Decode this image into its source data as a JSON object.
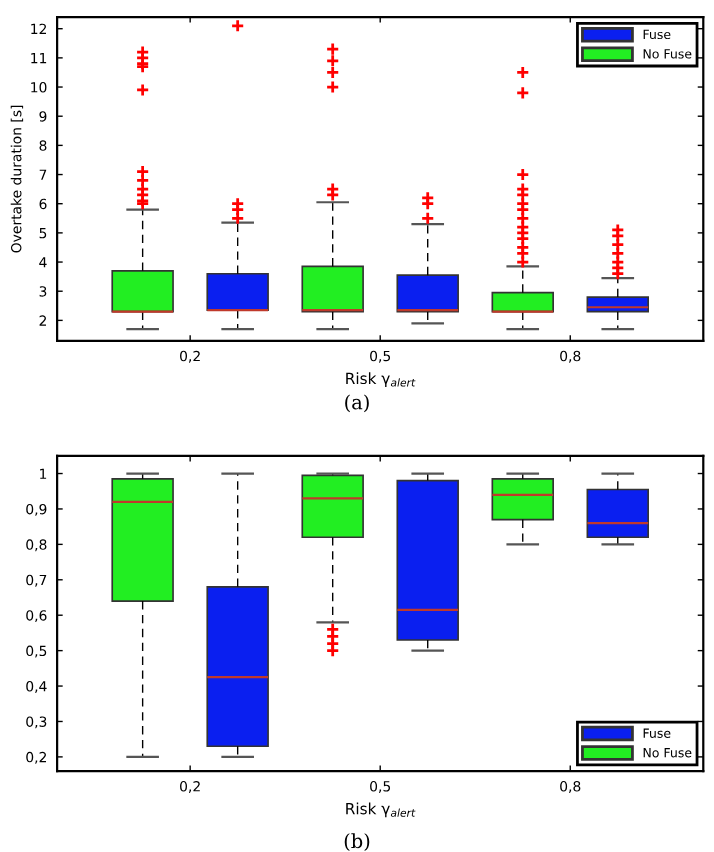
{
  "chart_data": [
    {
      "type": "box",
      "categories": [
        "0,2",
        "0,5",
        "0,8"
      ],
      "xlabel": "Risk γ$_{alert}$",
      "ylabel": "Overtake duration [s]",
      "ylim": [
        1.3,
        12.4
      ],
      "yticks": [
        2,
        3,
        4,
        5,
        6,
        7,
        8,
        9,
        10,
        11,
        12
      ],
      "legend": "top right",
      "grid": false,
      "marker": "cross",
      "annotations": [
        "(a)"
      ],
      "series": [
        {
          "name": "Fuse",
          "color": "#0a1ff0",
          "boxes": [
            {
              "low": 1.7,
              "q1": 2.35,
              "median": 2.35,
              "q3": 3.6,
              "high": 5.35,
              "outliers": [
                5.5,
                5.8,
                6.0,
                12.1
              ]
            },
            {
              "low": 1.9,
              "q1": 2.3,
              "median": 2.35,
              "q3": 3.55,
              "high": 5.3,
              "outliers": [
                5.5,
                6.0,
                6.2
              ]
            },
            {
              "low": 1.7,
              "q1": 2.3,
              "median": 2.45,
              "q3": 2.8,
              "high": 3.45,
              "outliers": [
                3.6,
                3.8,
                4.0,
                4.3,
                4.6,
                4.9,
                5.1
              ]
            }
          ]
        },
        {
          "name": "No Fuse",
          "color": "#22ee22",
          "boxes": [
            {
              "low": 1.7,
              "q1": 2.3,
              "median": 2.3,
              "q3": 3.7,
              "high": 5.8,
              "outliers": [
                6.0,
                6.1,
                6.3,
                6.5,
                6.8,
                7.1,
                9.9,
                10.7,
                10.8,
                11.0,
                11.2
              ]
            },
            {
              "low": 1.7,
              "q1": 2.3,
              "median": 2.35,
              "q3": 3.85,
              "high": 6.05,
              "outliers": [
                6.3,
                6.5,
                10.0,
                10.5,
                10.9,
                11.3
              ]
            },
            {
              "low": 1.7,
              "q1": 2.3,
              "median": 2.3,
              "q3": 2.95,
              "high": 3.85,
              "outliers": [
                4.0,
                4.3,
                4.5,
                4.8,
                5.0,
                5.2,
                5.5,
                5.8,
                6.0,
                6.3,
                6.5,
                7.0,
                9.8,
                10.5
              ]
            }
          ]
        }
      ]
    },
    {
      "type": "box",
      "categories": [
        "0,2",
        "0,5",
        "0,8"
      ],
      "xlabel": "Risk γ$_{alert}$",
      "ylim": [
        0.16,
        1.05
      ],
      "yticks": [
        {
          "value": 0.2,
          "label": "0,2"
        },
        {
          "value": 0.3,
          "label": "0,3"
        },
        {
          "value": 0.4,
          "label": "0,4"
        },
        {
          "value": 0.5,
          "label": "0,5"
        },
        {
          "value": 0.6,
          "label": "0,6"
        },
        {
          "value": 0.7,
          "label": "0,7"
        },
        {
          "value": 0.8,
          "label": "0,8"
        },
        {
          "value": 0.9,
          "label": "0,9"
        },
        1
      ],
      "legend": "bottom right",
      "grid": false,
      "marker": "cross",
      "annotations": [
        "(b)"
      ],
      "series": [
        {
          "name": "Fuse",
          "color": "#0a1ff0",
          "boxes": [
            {
              "low": 0.2,
              "q1": 0.23,
              "median": 0.425,
              "q3": 0.68,
              "high": 1.0
            },
            {
              "low": 0.5,
              "q1": 0.53,
              "median": 0.615,
              "q3": 0.98,
              "high": 1.0
            },
            {
              "low": 0.8,
              "q1": 0.82,
              "median": 0.86,
              "q3": 0.955,
              "high": 1.0
            }
          ]
        },
        {
          "name": "No Fuse",
          "color": "#22ee22",
          "boxes": [
            {
              "low": 0.2,
              "q1": 0.64,
              "median": 0.92,
              "q3": 0.985,
              "high": 1.0
            },
            {
              "low": 0.58,
              "q1": 0.82,
              "median": 0.93,
              "q3": 0.995,
              "high": 1.0,
              "outliers": [
                0.5,
                0.52,
                0.54,
                0.56
              ]
            },
            {
              "low": 0.8,
              "q1": 0.87,
              "median": 0.94,
              "q3": 0.985,
              "high": 1.0
            }
          ]
        }
      ]
    }
  ]
}
